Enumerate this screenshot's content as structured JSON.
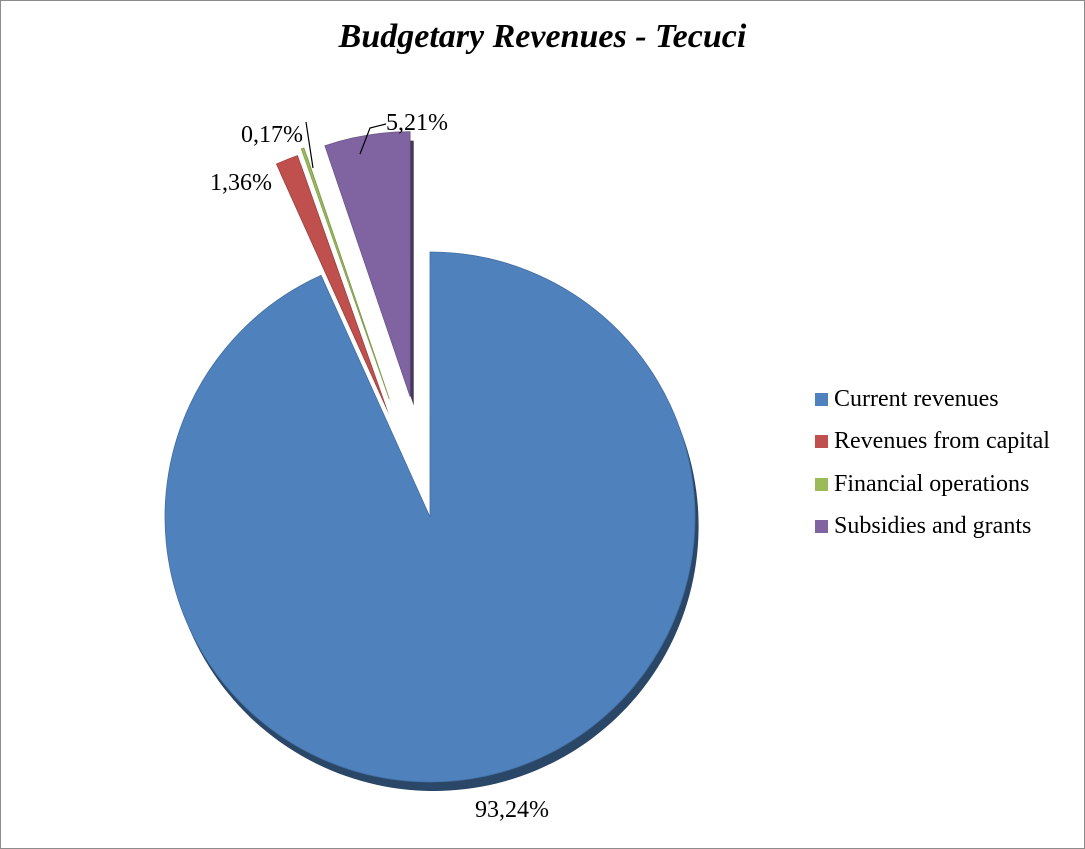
{
  "chart_data": {
    "type": "pie",
    "title": "Budgetary Revenues - Tecuci",
    "legend_position": "right",
    "slices": [
      {
        "name": "Current revenues",
        "value": 93.24,
        "label": "93,24%",
        "color": "#4f81bd",
        "exploded": false
      },
      {
        "name": "Revenues from capital",
        "value": 1.36,
        "label": "1,36%",
        "color": "#c0504d",
        "exploded": true
      },
      {
        "name": "Financial operations",
        "value": 0.17,
        "label": "0,17%",
        "color": "#9bbb59",
        "exploded": true
      },
      {
        "name": "Subsidies and grants",
        "value": 5.21,
        "label": "5,21%",
        "color": "#8064a2",
        "exploded": true
      }
    ]
  }
}
